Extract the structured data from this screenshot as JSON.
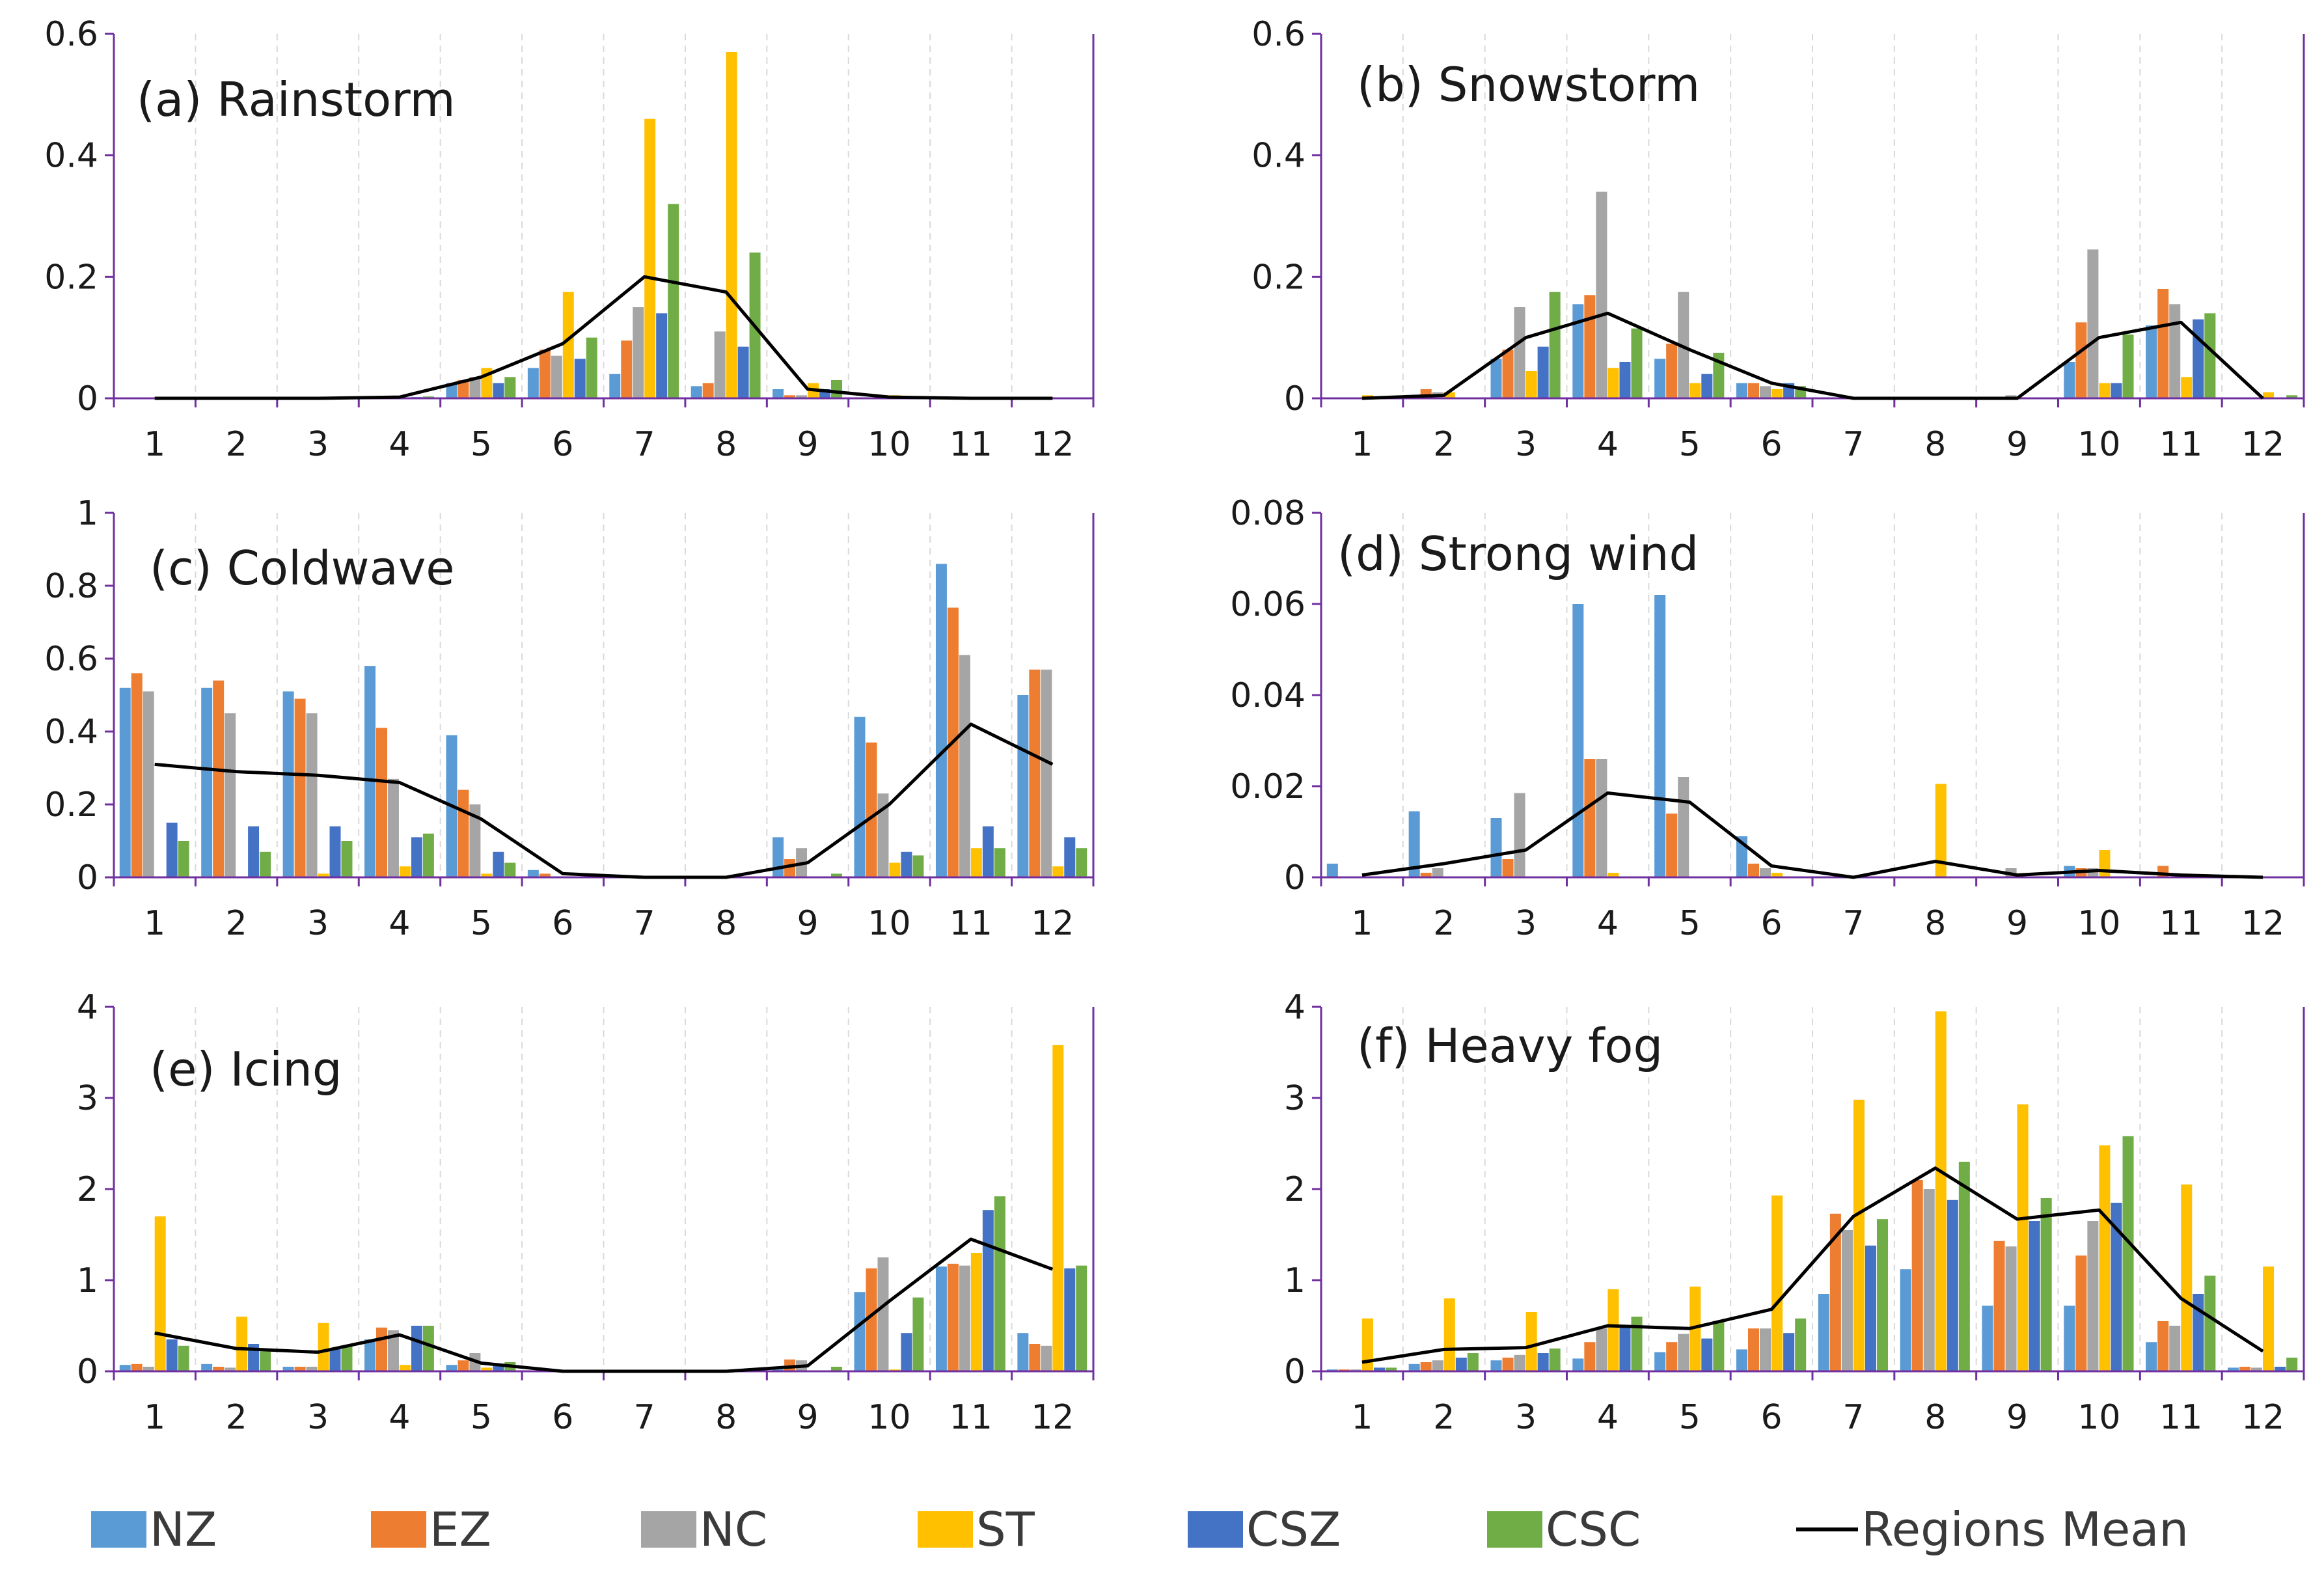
{
  "categories": [
    "1",
    "2",
    "3",
    "4",
    "5",
    "6",
    "7",
    "8",
    "9",
    "10",
    "11",
    "12"
  ],
  "colors": {
    "NZ": "#5b9bd5",
    "EZ": "#ed7d31",
    "NC": "#a5a5a5",
    "ST": "#ffc000",
    "CSZ": "#4472c4",
    "CSC": "#70ad47",
    "Regions Mean": "#000000",
    "axis": "#7030a0",
    "grid": "#d9d9d9"
  },
  "legend": [
    "NZ",
    "EZ",
    "NC",
    "ST",
    "CSZ",
    "CSC",
    "Regions Mean"
  ],
  "chart_data": [
    {
      "type": "bar",
      "title": "(a) Rainstorm",
      "categories": [
        "1",
        "2",
        "3",
        "4",
        "5",
        "6",
        "7",
        "8",
        "9",
        "10",
        "11",
        "12"
      ],
      "ylim": [
        0,
        0.6
      ],
      "yticks": [
        "0",
        "0.2",
        "0.4",
        "0.6"
      ],
      "series": [
        {
          "name": "NZ",
          "values": [
            0,
            0,
            0,
            0,
            0.025,
            0.05,
            0.04,
            0.02,
            0.015,
            0,
            0,
            0
          ]
        },
        {
          "name": "EZ",
          "values": [
            0,
            0,
            0,
            0,
            0.03,
            0.08,
            0.095,
            0.025,
            0.005,
            0,
            0,
            0
          ]
        },
        {
          "name": "NC",
          "values": [
            0,
            0,
            0,
            0,
            0.035,
            0.07,
            0.15,
            0.11,
            0.005,
            0,
            0,
            0
          ]
        },
        {
          "name": "ST",
          "values": [
            0,
            0,
            0,
            0,
            0.05,
            0.175,
            0.46,
            0.57,
            0.025,
            0.005,
            0,
            0
          ]
        },
        {
          "name": "CSZ",
          "values": [
            0,
            0,
            0,
            0.002,
            0.025,
            0.065,
            0.14,
            0.085,
            0.015,
            0,
            0,
            0
          ]
        },
        {
          "name": "CSC",
          "values": [
            0,
            0,
            0,
            0.003,
            0.035,
            0.1,
            0.32,
            0.24,
            0.03,
            0.003,
            0,
            0
          ]
        },
        {
          "name": "Regions Mean",
          "type": "line",
          "values": [
            0,
            0,
            0,
            0.002,
            0.035,
            0.09,
            0.2,
            0.175,
            0.015,
            0.002,
            0,
            0
          ]
        }
      ]
    },
    {
      "type": "bar",
      "title": "(b) Snowstorm",
      "categories": [
        "1",
        "2",
        "3",
        "4",
        "5",
        "6",
        "7",
        "8",
        "9",
        "10",
        "11",
        "12"
      ],
      "ylim": [
        0,
        0.6
      ],
      "yticks": [
        "0",
        "0.2",
        "0.4",
        "0.6"
      ],
      "series": [
        {
          "name": "NZ",
          "values": [
            0,
            0,
            0.065,
            0.155,
            0.065,
            0.025,
            0,
            0,
            0,
            0.06,
            0.12,
            0
          ]
        },
        {
          "name": "EZ",
          "values": [
            0,
            0.015,
            0.08,
            0.17,
            0.09,
            0.025,
            0,
            0,
            0,
            0.125,
            0.18,
            0
          ]
        },
        {
          "name": "NC",
          "values": [
            0,
            0.01,
            0.15,
            0.34,
            0.175,
            0.02,
            0,
            0,
            0.005,
            0.245,
            0.155,
            0
          ]
        },
        {
          "name": "ST",
          "values": [
            0.005,
            0.01,
            0.045,
            0.05,
            0.025,
            0.015,
            0,
            0,
            0,
            0.025,
            0.035,
            0.01
          ]
        },
        {
          "name": "CSZ",
          "values": [
            0,
            0,
            0.085,
            0.06,
            0.04,
            0.025,
            0,
            0,
            0,
            0.025,
            0.13,
            0
          ]
        },
        {
          "name": "CSC",
          "values": [
            0,
            0,
            0.175,
            0.115,
            0.075,
            0.02,
            0,
            0,
            0,
            0.105,
            0.14,
            0.005
          ]
        },
        {
          "name": "Regions Mean",
          "type": "line",
          "values": [
            0,
            0.005,
            0.1,
            0.14,
            0.08,
            0.025,
            0,
            0,
            0,
            0.1,
            0.125,
            0
          ]
        }
      ]
    },
    {
      "type": "bar",
      "title": "(c) Coldwave",
      "categories": [
        "1",
        "2",
        "3",
        "4",
        "5",
        "6",
        "7",
        "8",
        "9",
        "10",
        "11",
        "12"
      ],
      "ylim": [
        0,
        1
      ],
      "yticks": [
        "0",
        "0.2",
        "0.4",
        "0.6",
        "0.8",
        "1"
      ],
      "series": [
        {
          "name": "NZ",
          "values": [
            0.52,
            0.52,
            0.51,
            0.58,
            0.39,
            0.02,
            0,
            0,
            0.11,
            0.44,
            0.86,
            0.5
          ]
        },
        {
          "name": "EZ",
          "values": [
            0.56,
            0.54,
            0.49,
            0.41,
            0.24,
            0.01,
            0,
            0,
            0.05,
            0.37,
            0.74,
            0.57
          ]
        },
        {
          "name": "NC",
          "values": [
            0.51,
            0.45,
            0.45,
            0.27,
            0.2,
            0,
            0,
            0,
            0.08,
            0.23,
            0.61,
            0.57
          ]
        },
        {
          "name": "ST",
          "values": [
            0,
            0,
            0.01,
            0.03,
            0.01,
            0,
            0,
            0,
            0,
            0.04,
            0.08,
            0.03
          ]
        },
        {
          "name": "CSZ",
          "values": [
            0.15,
            0.14,
            0.14,
            0.11,
            0.07,
            0,
            0,
            0,
            0,
            0.07,
            0.14,
            0.11
          ]
        },
        {
          "name": "CSC",
          "values": [
            0.1,
            0.07,
            0.1,
            0.12,
            0.04,
            0,
            0,
            0,
            0.01,
            0.06,
            0.08,
            0.08
          ]
        },
        {
          "name": "Regions Mean",
          "type": "line",
          "values": [
            0.31,
            0.29,
            0.28,
            0.26,
            0.16,
            0.01,
            0,
            0,
            0.04,
            0.2,
            0.42,
            0.31
          ]
        }
      ]
    },
    {
      "type": "bar",
      "title": "(d) Strong wind",
      "categories": [
        "1",
        "2",
        "3",
        "4",
        "5",
        "6",
        "7",
        "8",
        "9",
        "10",
        "11",
        "12"
      ],
      "ylim": [
        0,
        0.08
      ],
      "yticks": [
        "0",
        "0.02",
        "0.04",
        "0.06",
        "0.08"
      ],
      "series": [
        {
          "name": "NZ",
          "values": [
            0.003,
            0.0145,
            0.013,
            0.06,
            0.062,
            0.009,
            0,
            0,
            0,
            0.0025,
            0,
            0
          ]
        },
        {
          "name": "EZ",
          "values": [
            0,
            0.001,
            0.004,
            0.026,
            0.014,
            0.003,
            0,
            0,
            0,
            0.002,
            0.0025,
            0
          ]
        },
        {
          "name": "NC",
          "values": [
            0,
            0.002,
            0.0185,
            0.026,
            0.022,
            0.002,
            0,
            0,
            0.002,
            0.002,
            0,
            0
          ]
        },
        {
          "name": "ST",
          "values": [
            0,
            0,
            0,
            0.001,
            0,
            0.001,
            0,
            0.0205,
            0,
            0.006,
            0,
            0
          ]
        },
        {
          "name": "CSZ",
          "values": [
            0,
            0,
            0,
            0,
            0,
            0,
            0,
            0,
            0,
            0,
            0,
            0
          ]
        },
        {
          "name": "CSC",
          "values": [
            0,
            0,
            0,
            0,
            0,
            0,
            0,
            0,
            0,
            0,
            0,
            0
          ]
        },
        {
          "name": "Regions Mean",
          "type": "line",
          "values": [
            0.0005,
            0.003,
            0.006,
            0.0185,
            0.0165,
            0.0025,
            0,
            0.0035,
            0.0005,
            0.0015,
            0.0005,
            0
          ]
        }
      ]
    },
    {
      "type": "bar",
      "title": "(e) Icing",
      "categories": [
        "1",
        "2",
        "3",
        "4",
        "5",
        "6",
        "7",
        "8",
        "9",
        "10",
        "11",
        "12"
      ],
      "ylim": [
        0,
        4
      ],
      "yticks": [
        "0",
        "1",
        "2",
        "3",
        "4"
      ],
      "series": [
        {
          "name": "NZ",
          "values": [
            0.07,
            0.08,
            0.05,
            0.35,
            0.07,
            0,
            0,
            0,
            0.02,
            0.87,
            1.15,
            0.42
          ]
        },
        {
          "name": "EZ",
          "values": [
            0.08,
            0.05,
            0.05,
            0.48,
            0.12,
            0,
            0,
            0,
            0.13,
            1.13,
            1.18,
            0.3
          ]
        },
        {
          "name": "NC",
          "values": [
            0.05,
            0.04,
            0.05,
            0.45,
            0.2,
            0,
            0,
            0,
            0.12,
            1.25,
            1.16,
            0.28
          ]
        },
        {
          "name": "ST",
          "values": [
            1.7,
            0.6,
            0.53,
            0.07,
            0.04,
            0,
            0,
            0,
            0,
            0.02,
            1.3,
            3.58
          ]
        },
        {
          "name": "CSZ",
          "values": [
            0.35,
            0.3,
            0.25,
            0.5,
            0.06,
            0,
            0,
            0,
            0,
            0.42,
            1.77,
            1.13
          ]
        },
        {
          "name": "CSC",
          "values": [
            0.28,
            0.22,
            0.28,
            0.5,
            0.1,
            0,
            0,
            0,
            0.05,
            0.81,
            1.92,
            1.16
          ]
        },
        {
          "name": "Regions Mean",
          "type": "line",
          "values": [
            0.42,
            0.25,
            0.21,
            0.4,
            0.09,
            0,
            0,
            0,
            0.06,
            0.77,
            1.45,
            1.12
          ]
        }
      ]
    },
    {
      "type": "bar",
      "title": "(f) Heavy fog",
      "categories": [
        "1",
        "2",
        "3",
        "4",
        "5",
        "6",
        "7",
        "8",
        "9",
        "10",
        "11",
        "12"
      ],
      "ylim": [
        0,
        4
      ],
      "yticks": [
        "0",
        "1",
        "2",
        "3",
        "4"
      ],
      "series": [
        {
          "name": "NZ",
          "values": [
            0.02,
            0.08,
            0.12,
            0.14,
            0.21,
            0.24,
            0.85,
            1.12,
            0.72,
            0.72,
            0.32,
            0.04
          ]
        },
        {
          "name": "EZ",
          "values": [
            0.02,
            0.1,
            0.15,
            0.32,
            0.32,
            0.47,
            1.73,
            2.1,
            1.43,
            1.27,
            0.55,
            0.05
          ]
        },
        {
          "name": "NC",
          "values": [
            0.02,
            0.12,
            0.18,
            0.47,
            0.41,
            0.47,
            1.55,
            2.0,
            1.37,
            1.65,
            0.5,
            0.04
          ]
        },
        {
          "name": "ST",
          "values": [
            0.58,
            0.8,
            0.65,
            0.9,
            0.93,
            1.93,
            2.98,
            3.95,
            2.93,
            2.48,
            2.05,
            1.15
          ]
        },
        {
          "name": "CSZ",
          "values": [
            0.04,
            0.15,
            0.2,
            0.48,
            0.36,
            0.42,
            1.38,
            1.88,
            1.65,
            1.85,
            0.85,
            0.05
          ]
        },
        {
          "name": "CSC",
          "values": [
            0.04,
            0.2,
            0.25,
            0.6,
            0.55,
            0.58,
            1.67,
            2.3,
            1.9,
            2.58,
            1.05,
            0.15
          ]
        },
        {
          "name": "Regions Mean",
          "type": "line",
          "values": [
            0.1,
            0.24,
            0.26,
            0.5,
            0.47,
            0.68,
            1.7,
            2.23,
            1.67,
            1.77,
            0.8,
            0.22
          ]
        }
      ]
    }
  ]
}
